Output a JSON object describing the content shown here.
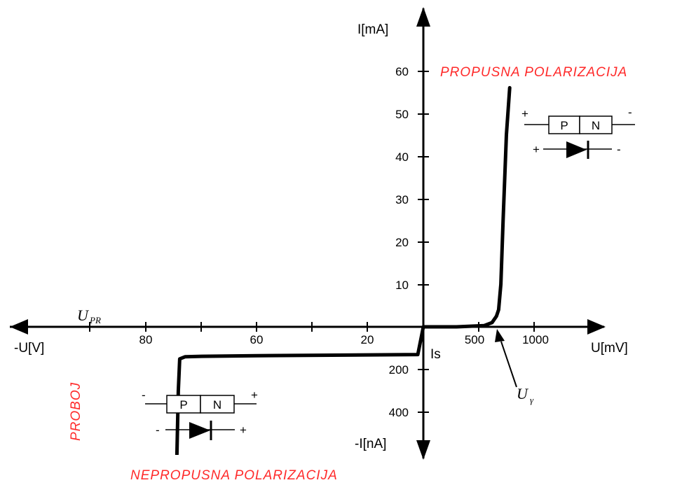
{
  "chart_data": {
    "type": "line",
    "x_axis": {
      "positive_label": "U[mV]",
      "negative_label": "-U[V]",
      "positive_ticks": [
        "500",
        "1000"
      ],
      "negative_ticks": [
        "20",
        "60",
        "80"
      ]
    },
    "y_axis": {
      "positive_label": "I[mA]",
      "negative_label": "-I[nA]",
      "positive_ticks": [
        "10",
        "20",
        "30",
        "40",
        "50",
        "60"
      ],
      "negative_ticks": [
        "200",
        "400"
      ]
    },
    "forward_curve": {
      "x_mV": [
        0,
        300,
        550,
        620,
        660,
        680,
        700,
        720,
        750,
        780
      ],
      "y_mA": [
        0,
        0,
        0.3,
        1,
        2.5,
        4,
        10,
        25,
        45,
        56
      ]
    },
    "reverse_curve": {
      "x_V": [
        0,
        -2,
        -60,
        -80,
        -86,
        -88,
        -88.5,
        -89
      ],
      "y_nA": [
        0,
        -130,
        -135,
        -138,
        -140,
        -150,
        -300,
        -600
      ]
    },
    "annotations": {
      "breakdown_voltage": "U",
      "breakdown_voltage_sub": "PR",
      "threshold_voltage": "U",
      "threshold_voltage_sub": "γ",
      "saturation_current": "Is",
      "forward_region": "PROPUSNA POLARIZACIJA",
      "reverse_region": "NEPROPUSNA POLARIZACIJA",
      "breakdown": "PROBOJ"
    },
    "forward_symbol": {
      "p": "P",
      "n": "N",
      "left_sign": "+",
      "right_sign": "-"
    },
    "reverse_symbol": {
      "p": "P",
      "n": "N",
      "left_sign": "-",
      "right_sign": "+"
    },
    "colors": {
      "annotation_red": "#ff2a2a",
      "line": "#000000"
    }
  }
}
